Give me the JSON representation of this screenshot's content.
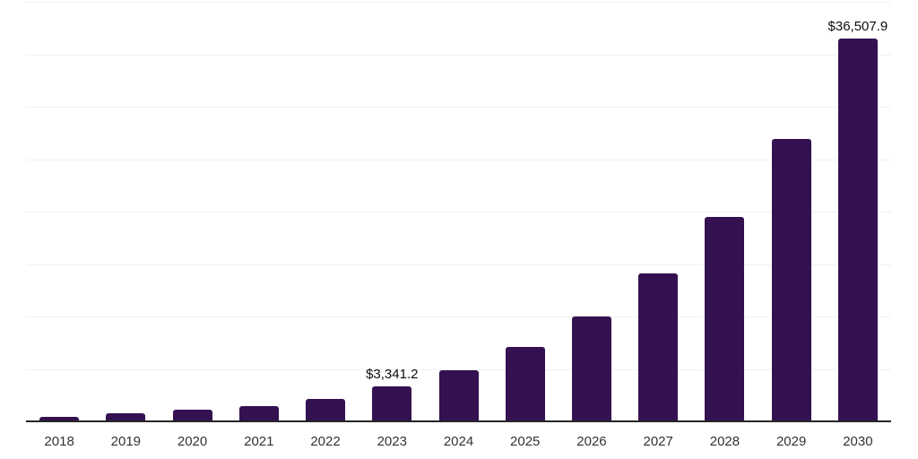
{
  "chart_data": {
    "type": "bar",
    "title": "",
    "xlabel": "",
    "ylabel": "",
    "categories": [
      "2018",
      "2019",
      "2020",
      "2021",
      "2022",
      "2023",
      "2024",
      "2025",
      "2026",
      "2027",
      "2028",
      "2029",
      "2030"
    ],
    "values": [
      430,
      740,
      1075,
      1450,
      2110,
      3341.2,
      4850,
      7080,
      10030,
      14120,
      19460,
      26890,
      36507.9
    ],
    "data_labels": {
      "5": "$3,341.2",
      "12": "$36,507.9"
    },
    "ylim": [
      0,
      40000
    ],
    "gridline_step": 5000,
    "grid": true,
    "legend": "none",
    "y_axis_tick_labels_visible": false,
    "colors": {
      "bar": "#341150",
      "gridline": "#f1f1f1",
      "axis_line": "#262626",
      "x_label_text": "#333333",
      "data_label_text": "#0d0d0d",
      "background": "#ffffff"
    }
  }
}
